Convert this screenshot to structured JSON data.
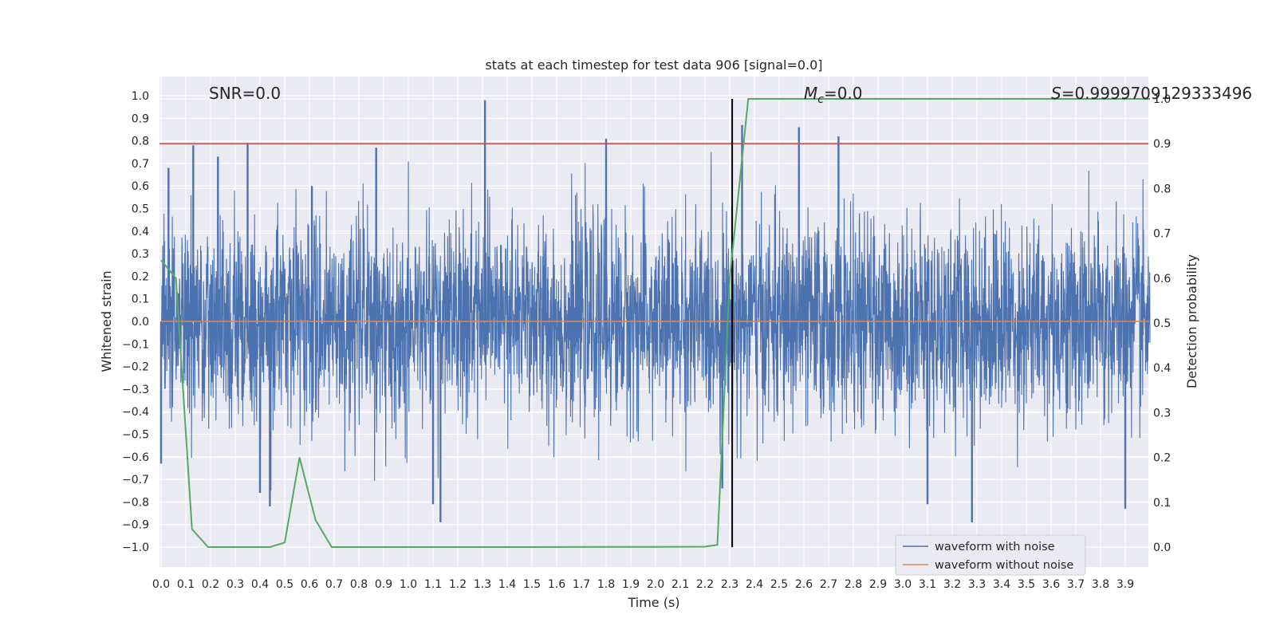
{
  "chart_data": {
    "type": "line",
    "title": "stats at each timestep for test data 906 [signal=0.0]",
    "xlabel": "Time (s)",
    "ylabel_left": "Whitened strain",
    "ylabel_right": "Detection probability",
    "xlim": [
      0.0,
      4.0
    ],
    "ylim_left": [
      -1.1,
      1.1
    ],
    "ylim_right": [
      -0.05,
      1.05
    ],
    "x_ticks": [
      "0.0",
      "0.1",
      "0.2",
      "0.3",
      "0.4",
      "0.5",
      "0.6",
      "0.7",
      "0.8",
      "0.9",
      "1.0",
      "1.1",
      "1.2",
      "1.3",
      "1.4",
      "1.5",
      "1.6",
      "1.7",
      "1.8",
      "1.9",
      "2.0",
      "2.1",
      "2.2",
      "2.3",
      "2.4",
      "2.5",
      "2.6",
      "2.7",
      "2.8",
      "2.9",
      "3.0",
      "3.1",
      "3.2",
      "3.3",
      "3.4",
      "3.5",
      "3.6",
      "3.7",
      "3.8",
      "3.9"
    ],
    "y_left_ticks": [
      "1.0",
      "0.9",
      "0.8",
      "0.7",
      "0.6",
      "0.5",
      "0.4",
      "0.3",
      "0.2",
      "0.1",
      "0.0",
      "−0.1",
      "−0.2",
      "−0.3",
      "−0.4",
      "−0.5",
      "−0.6",
      "−0.7",
      "−0.8",
      "−0.9",
      "−1.0"
    ],
    "y_right_ticks": [
      "1.0",
      "0.9",
      "0.8",
      "0.7",
      "0.6",
      "0.5",
      "0.4",
      "0.3",
      "0.2",
      "0.1",
      "0.0"
    ],
    "annotations": {
      "snr": "SNR=0.0",
      "mc_symbol": "M",
      "mc_sub": "c",
      "mc_value": "=0.0",
      "s_symbol": "S",
      "s_value": "=0.9999709129333496"
    },
    "series": [
      {
        "name": "waveform with noise",
        "color": "#4c72b0",
        "axis": "left",
        "description": "dense whitened noise, values roughly between -0.9 and 0.98",
        "peaks": [
          {
            "x": 0.0,
            "y": -0.63
          },
          {
            "x": 0.03,
            "y": 0.68
          },
          {
            "x": 0.13,
            "y": 0.78
          },
          {
            "x": 0.23,
            "y": 0.73
          },
          {
            "x": 0.35,
            "y": 0.79
          },
          {
            "x": 0.4,
            "y": -0.76
          },
          {
            "x": 0.44,
            "y": -0.82
          },
          {
            "x": 0.61,
            "y": 0.6
          },
          {
            "x": 0.87,
            "y": 0.77
          },
          {
            "x": 1.1,
            "y": -0.81
          },
          {
            "x": 1.13,
            "y": -0.89
          },
          {
            "x": 1.31,
            "y": 0.98
          },
          {
            "x": 1.8,
            "y": 0.81
          },
          {
            "x": 2.27,
            "y": -0.74
          },
          {
            "x": 2.35,
            "y": 0.87
          },
          {
            "x": 2.58,
            "y": 0.86
          },
          {
            "x": 2.74,
            "y": 0.82
          },
          {
            "x": 3.1,
            "y": -0.81
          },
          {
            "x": 3.28,
            "y": -0.89
          },
          {
            "x": 3.9,
            "y": -0.83
          }
        ]
      },
      {
        "name": "waveform without noise",
        "color": "#dd8452",
        "axis": "left",
        "x": [
          0.0,
          4.0
        ],
        "y": [
          0.0,
          0.0
        ]
      },
      {
        "name": "detection probability",
        "color": "#55a868",
        "axis": "right",
        "x": [
          0.0,
          0.06,
          0.125,
          0.19,
          0.44,
          0.5,
          0.56,
          0.625,
          0.69,
          1.5,
          1.9,
          2.0,
          2.2,
          2.25,
          2.3,
          2.375,
          3.0,
          4.0
        ],
        "y": [
          0.64,
          0.6,
          0.04,
          0.0,
          0.0,
          0.01,
          0.2,
          0.06,
          0.0,
          0.0,
          0.0005,
          0.0005,
          0.001,
          0.005,
          0.6,
          1.0,
          1.0,
          1.0
        ]
      }
    ],
    "threshold_line": {
      "color": "#c44e52",
      "axis": "right",
      "y": 0.9
    },
    "vertical_marker": {
      "color": "#000000",
      "x": 2.31,
      "y_range_right": [
        0.0,
        1.0
      ]
    },
    "legend": {
      "position": "lower-right",
      "entries": [
        {
          "label": "waveform with noise",
          "color": "#4c72b0"
        },
        {
          "label": "waveform without noise",
          "color": "#dd8452"
        }
      ]
    },
    "colors": {
      "plot_background": "#eaeaf2",
      "grid": "#ffffff",
      "text": "#262626"
    }
  }
}
